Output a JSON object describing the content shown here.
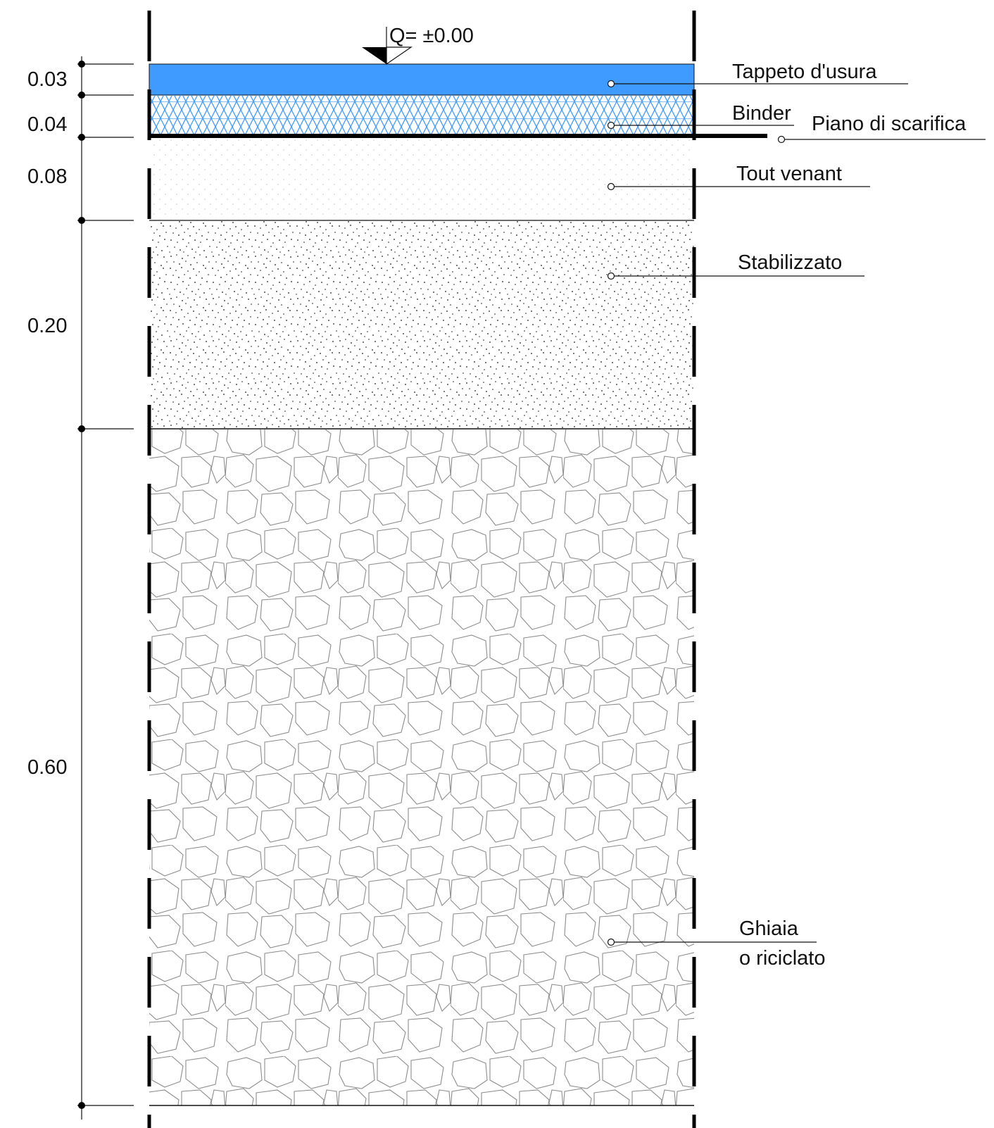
{
  "elevation": {
    "label": "Q= ±0.00"
  },
  "dimensions": [
    "0.03",
    "0.04",
    "0.08",
    "0.20",
    "0.60"
  ],
  "layers": [
    {
      "id": "tappeto",
      "label": "Tappeto d'usura",
      "thickness": "0.03",
      "color": "#3f9bff"
    },
    {
      "id": "binder",
      "label": "Binder",
      "thickness": "0.04",
      "color": "#3f9bff"
    },
    {
      "id": "scarifica",
      "label": "Piano di scarifica"
    },
    {
      "id": "tout",
      "label": "Tout venant",
      "thickness": "0.08"
    },
    {
      "id": "stabilizzato",
      "label": "Stabilizzato",
      "thickness": "0.20"
    },
    {
      "id": "ghiaia",
      "label_line1": "Ghiaia",
      "label_line2": "o riciclato",
      "thickness": "0.60"
    }
  ]
}
